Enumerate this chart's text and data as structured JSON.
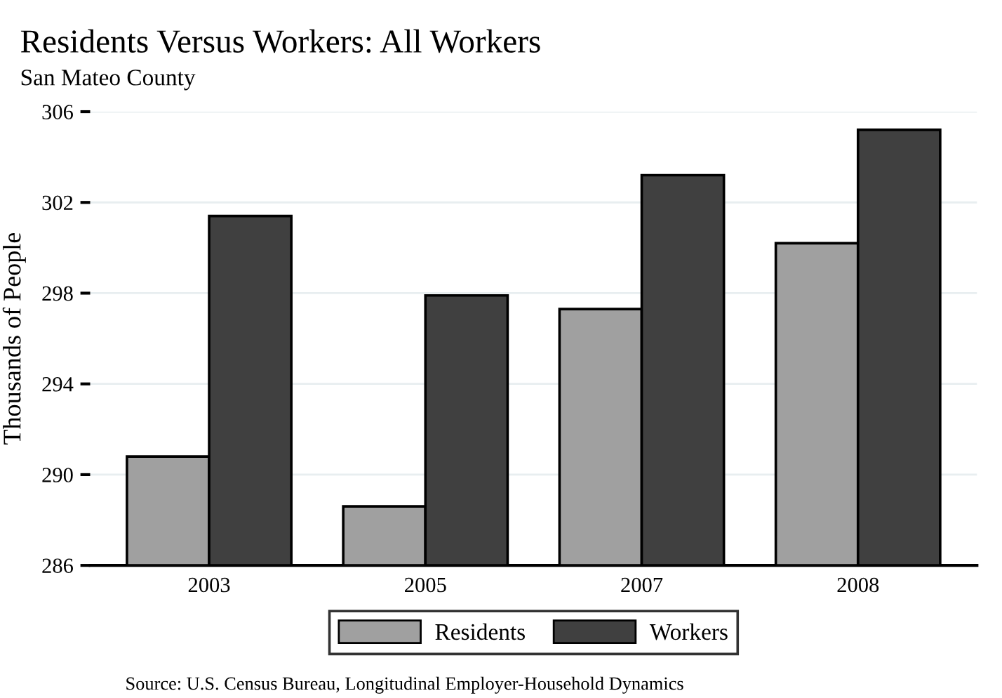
{
  "chart_data": {
    "type": "bar",
    "title": "Residents Versus Workers: All Workers",
    "subtitle": "San Mateo County",
    "ylabel": "Thousands of People",
    "categories": [
      "2003",
      "2005",
      "2007",
      "2008"
    ],
    "series": [
      {
        "name": "Residents",
        "color": "#a0a0a0",
        "values": [
          290.8,
          288.6,
          297.3,
          300.2
        ]
      },
      {
        "name": "Workers",
        "color": "#404040",
        "values": [
          301.4,
          297.9,
          303.2,
          305.2
        ]
      }
    ],
    "ylim": [
      286,
      306
    ],
    "yticks": [
      286,
      290,
      294,
      298,
      302,
      306
    ],
    "grid": "y",
    "legend": "bottom",
    "annotations": [
      "Source: U.S. Census Bureau, Longitudinal Employer-Household Dynamics"
    ]
  }
}
